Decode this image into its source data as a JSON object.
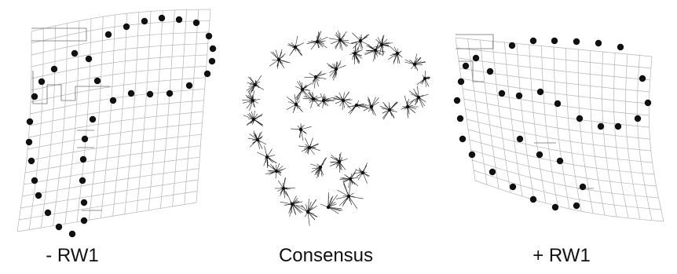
{
  "panels": [
    {
      "caption": "- RW1",
      "kind": "deformation-grid-negative"
    },
    {
      "caption": "Consensus",
      "kind": "landmark-consensus"
    },
    {
      "caption": "+ RW1",
      "kind": "deformation-grid-positive"
    }
  ],
  "colors": {
    "landmark": "#111111",
    "grid": "#b4b4b4",
    "grid_accent": "#6c6c6c"
  }
}
